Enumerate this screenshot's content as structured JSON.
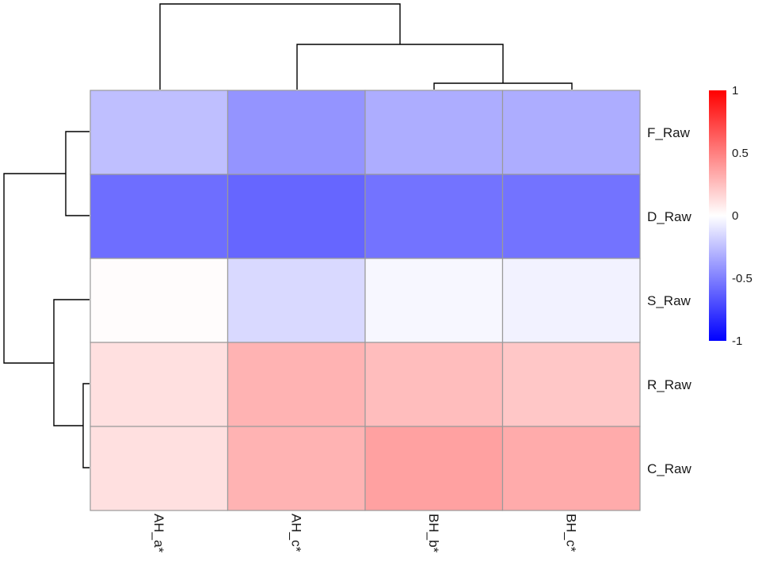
{
  "chart_data": {
    "type": "heatmap",
    "title": "",
    "columns": [
      "AH_a*",
      "AH_c*",
      "BH_b*",
      "BH_c*"
    ],
    "rows": [
      "F_Raw",
      "D_Raw",
      "S_Raw",
      "R_Raw",
      "C_Raw"
    ],
    "values": [
      [
        -0.25,
        -0.42,
        -0.32,
        -0.32
      ],
      [
        -0.57,
        -0.6,
        -0.55,
        -0.55
      ],
      [
        0.01,
        -0.15,
        -0.03,
        -0.05
      ],
      [
        0.12,
        0.3,
        0.26,
        0.22
      ],
      [
        0.12,
        0.3,
        0.37,
        0.33
      ]
    ],
    "color_scale": {
      "min": -1,
      "max": 1,
      "low_color": "#0000ff",
      "mid_color": "#ffffff",
      "high_color": "#ff0000",
      "ticks": [
        {
          "value": 1,
          "label": "1"
        },
        {
          "value": 0.5,
          "label": "0.5"
        },
        {
          "value": 0,
          "label": "0"
        },
        {
          "value": -0.5,
          "label": "-0.5"
        },
        {
          "value": -1,
          "label": "-1"
        }
      ]
    },
    "row_dendrogram": true,
    "column_dendrogram": true,
    "legend_position": "right"
  }
}
